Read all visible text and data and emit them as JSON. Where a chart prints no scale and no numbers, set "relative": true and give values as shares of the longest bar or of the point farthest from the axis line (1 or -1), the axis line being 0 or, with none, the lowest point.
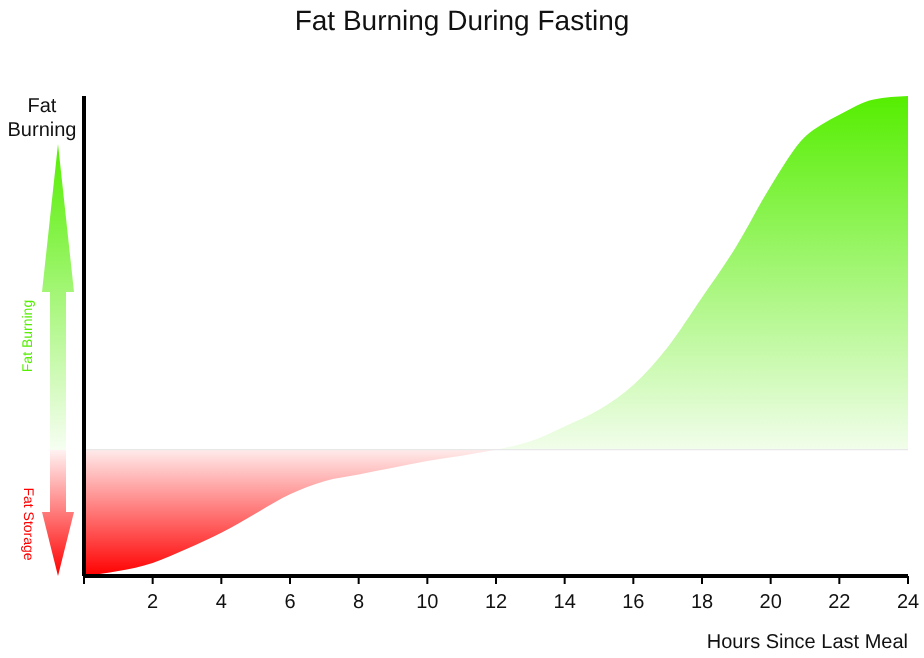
{
  "chart_data": {
    "type": "area",
    "title": "Fat Burning During Fasting",
    "xlabel": "Hours Since Last Meal",
    "ylabel": "Fat Burning",
    "relative": true,
    "xlim": [
      0,
      24
    ],
    "xticks": [
      {
        "value": 0,
        "label": null
      },
      2,
      4,
      6,
      8,
      10,
      12,
      14,
      16,
      18,
      20,
      22,
      24
    ],
    "series": [
      {
        "color": "#ff0000",
        "x": [
          0,
          1,
          2,
          3,
          4,
          5,
          6,
          7,
          8,
          9,
          10,
          11,
          12
        ],
        "values": [
          -0.357,
          -0.343,
          -0.32,
          -0.28,
          -0.235,
          -0.18,
          -0.126,
          -0.089,
          -0.07,
          -0.051,
          -0.032,
          -0.017,
          0
        ]
      },
      {
        "color": "#55ee00",
        "x": [
          12,
          13,
          14,
          15,
          16,
          17,
          18,
          19,
          20,
          21,
          21.5,
          22,
          23,
          24
        ],
        "values": [
          0,
          0.024,
          0.066,
          0.113,
          0.183,
          0.29,
          0.43,
          0.575,
          0.745,
          0.885,
          0.92,
          0.947,
          0.99,
          1
        ]
      }
    ],
    "annotations": [
      "Fat Burning",
      "Fat Storage"
    ],
    "grid": false
  }
}
